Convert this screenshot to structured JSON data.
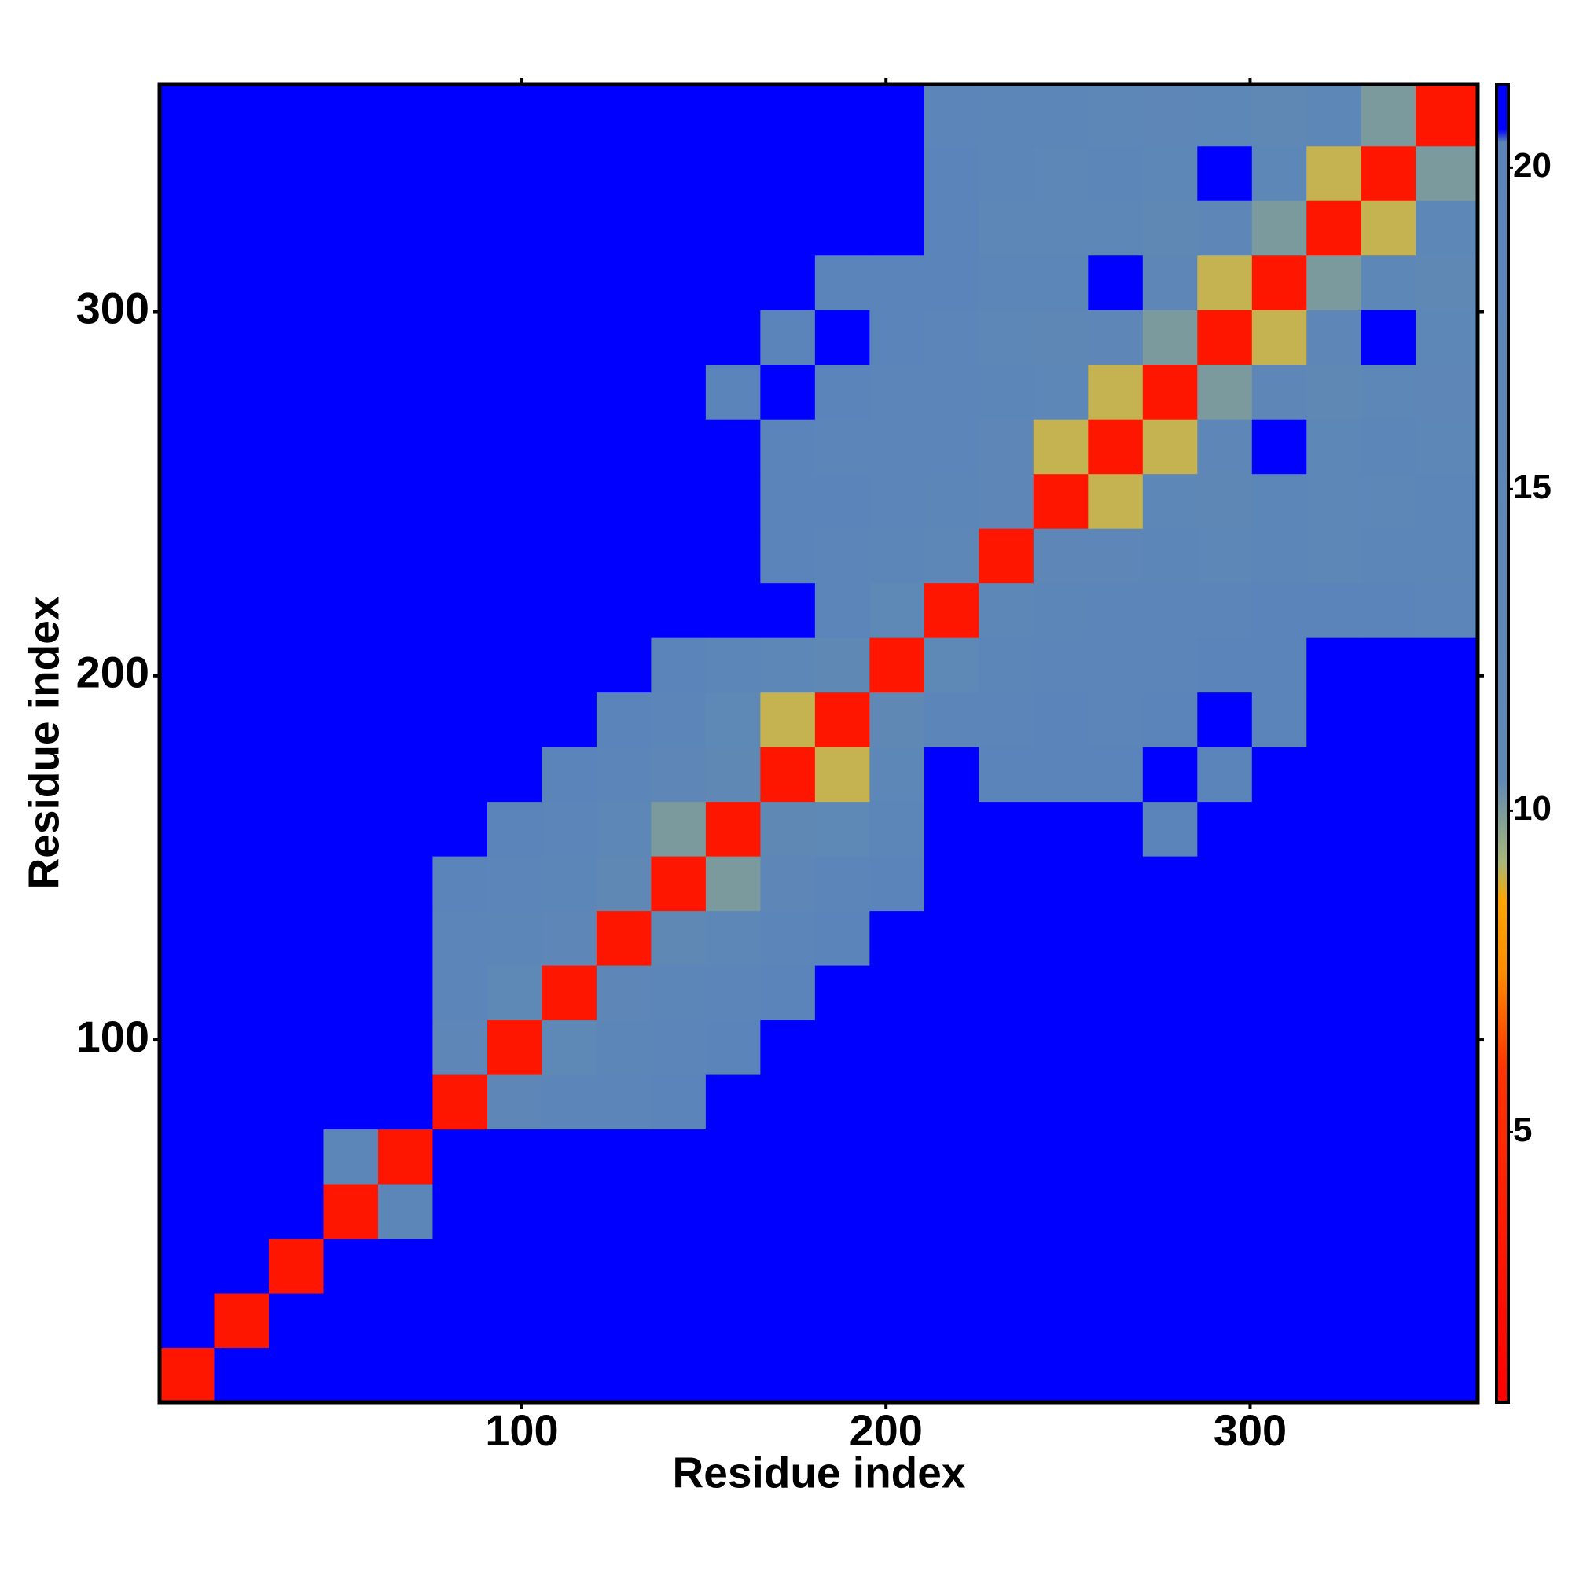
{
  "chart_data": {
    "type": "heatmap",
    "x_label": "Residue index",
    "y_label": "Residue index",
    "bins": [
      0.5,
      15.5,
      30.5,
      45.5,
      60.5,
      75.5,
      90.5,
      105.5,
      120.5,
      135.5,
      150.5,
      165.5,
      180.5,
      195.5,
      210.5,
      225.5,
      240.5,
      255.5,
      270.5,
      285.5,
      300.5,
      315.5,
      330.5,
      345.5,
      362.5
    ],
    "z": [
      [
        3,
        21,
        21,
        21,
        21,
        21,
        21,
        21,
        21,
        21,
        21,
        21,
        21,
        21,
        21,
        21,
        21,
        21,
        21,
        21,
        21,
        21,
        21,
        21
      ],
      [
        21,
        3,
        21,
        21,
        21,
        21,
        21,
        21,
        21,
        21,
        21,
        21,
        21,
        21,
        21,
        21,
        21,
        21,
        21,
        21,
        21,
        21,
        21,
        21
      ],
      [
        21,
        21,
        3,
        21,
        21,
        21,
        21,
        21,
        21,
        21,
        21,
        21,
        21,
        21,
        21,
        21,
        21,
        21,
        21,
        21,
        21,
        21,
        21,
        21
      ],
      [
        21,
        21,
        21,
        3,
        16,
        21,
        21,
        21,
        21,
        21,
        21,
        21,
        21,
        21,
        21,
        21,
        21,
        21,
        21,
        21,
        21,
        21,
        21,
        21
      ],
      [
        21,
        21,
        21,
        16,
        3,
        21,
        21,
        21,
        21,
        21,
        21,
        21,
        21,
        21,
        21,
        21,
        21,
        21,
        21,
        21,
        21,
        21,
        21,
        21
      ],
      [
        21,
        21,
        21,
        21,
        21,
        3,
        14,
        18,
        19,
        20,
        21,
        21,
        21,
        21,
        21,
        21,
        21,
        21,
        21,
        21,
        21,
        21,
        21,
        21
      ],
      [
        21,
        21,
        21,
        21,
        21,
        14,
        3,
        12,
        17,
        19,
        20,
        21,
        21,
        21,
        21,
        21,
        21,
        21,
        21,
        21,
        21,
        21,
        21,
        21
      ],
      [
        21,
        21,
        21,
        21,
        21,
        18,
        12,
        3,
        14,
        17,
        19,
        20,
        21,
        21,
        21,
        21,
        21,
        21,
        21,
        21,
        21,
        21,
        21,
        21
      ],
      [
        21,
        21,
        21,
        21,
        21,
        19,
        17,
        14,
        3,
        11,
        15,
        19,
        20,
        21,
        21,
        21,
        21,
        21,
        21,
        21,
        21,
        21,
        21,
        21
      ],
      [
        21,
        21,
        21,
        21,
        21,
        20,
        19,
        17,
        11,
        3,
        10,
        14,
        18,
        20,
        21,
        21,
        21,
        21,
        21,
        21,
        21,
        21,
        21,
        21
      ],
      [
        21,
        21,
        21,
        21,
        21,
        21,
        20,
        19,
        15,
        10,
        3,
        11,
        12,
        17,
        21,
        21,
        21,
        21,
        20,
        21,
        21,
        21,
        21,
        21
      ],
      [
        21,
        21,
        21,
        21,
        21,
        21,
        21,
        20,
        19,
        14,
        11,
        3,
        9,
        15,
        21,
        20,
        20,
        20,
        21,
        20,
        21,
        21,
        21,
        21
      ],
      [
        21,
        21,
        21,
        21,
        21,
        21,
        21,
        21,
        20,
        18,
        12,
        9,
        3,
        11,
        19,
        19,
        20,
        19,
        20,
        21,
        20,
        21,
        21,
        21
      ],
      [
        21,
        21,
        21,
        21,
        21,
        21,
        21,
        21,
        21,
        20,
        17,
        15,
        11,
        3,
        12,
        17,
        18,
        19,
        19,
        20,
        20,
        21,
        21,
        21
      ],
      [
        21,
        21,
        21,
        21,
        21,
        21,
        21,
        21,
        21,
        21,
        21,
        21,
        19,
        12,
        3,
        15,
        17,
        19,
        18,
        19,
        20,
        20,
        20,
        19
      ],
      [
        21,
        21,
        21,
        21,
        21,
        21,
        21,
        21,
        21,
        21,
        21,
        20,
        19,
        17,
        15,
        3,
        14,
        14,
        16,
        15,
        17,
        15,
        16,
        17
      ],
      [
        21,
        21,
        21,
        21,
        21,
        21,
        21,
        21,
        21,
        21,
        21,
        20,
        20,
        18,
        17,
        14,
        3,
        9,
        15,
        13,
        16,
        15,
        15,
        16
      ],
      [
        21,
        21,
        21,
        21,
        21,
        21,
        21,
        21,
        21,
        21,
        21,
        20,
        19,
        19,
        19,
        14,
        9,
        3,
        9,
        14,
        21,
        15,
        16,
        15
      ],
      [
        21,
        21,
        21,
        21,
        21,
        21,
        21,
        21,
        21,
        21,
        20,
        21,
        20,
        19,
        18,
        16,
        15,
        9,
        3,
        10,
        14,
        11,
        15,
        14
      ],
      [
        21,
        21,
        21,
        21,
        21,
        21,
        21,
        21,
        21,
        21,
        21,
        20,
        21,
        20,
        19,
        15,
        13,
        14,
        10,
        3,
        9,
        14,
        21,
        15
      ],
      [
        21,
        21,
        21,
        21,
        21,
        21,
        21,
        21,
        21,
        21,
        21,
        21,
        20,
        20,
        20,
        17,
        16,
        21,
        14,
        9,
        3,
        10,
        15,
        11
      ],
      [
        21,
        21,
        21,
        21,
        21,
        21,
        21,
        21,
        21,
        21,
        21,
        21,
        21,
        21,
        20,
        15,
        15,
        15,
        11,
        14,
        10,
        3,
        9,
        15
      ],
      [
        21,
        21,
        21,
        21,
        21,
        21,
        21,
        21,
        21,
        21,
        21,
        21,
        21,
        21,
        20,
        16,
        15,
        16,
        15,
        21,
        15,
        9,
        3,
        10
      ],
      [
        21,
        21,
        21,
        21,
        21,
        21,
        21,
        21,
        21,
        21,
        21,
        21,
        21,
        21,
        19,
        17,
        16,
        15,
        14,
        15,
        11,
        15,
        10,
        3
      ]
    ],
    "xlim": [
      0.5,
      362.5
    ],
    "ylim": [
      0.5,
      362.5
    ],
    "xticks": [
      100,
      200,
      300
    ],
    "yticks": [
      100,
      200,
      300
    ],
    "colorscale": [
      [
        0.8,
        "#ff0000"
      ],
      [
        6,
        "#ff3300"
      ],
      [
        7.5,
        "#ff8c00"
      ],
      [
        8.6,
        "#ffa500"
      ],
      [
        9.2,
        "#a8b878"
      ],
      [
        10.5,
        "#5f88b5"
      ],
      [
        20.4,
        "#5b85ba"
      ],
      [
        20.6,
        "#0000ff"
      ],
      [
        21.3,
        "#0000ff"
      ]
    ],
    "zlim": [
      0.8,
      21.3
    ],
    "zticks": [
      5,
      10,
      15,
      20
    ]
  }
}
